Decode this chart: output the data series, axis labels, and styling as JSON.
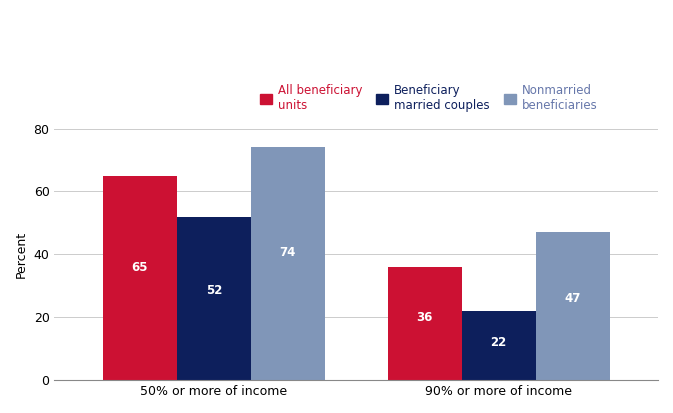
{
  "groups": [
    "50% or more of income",
    "90% or more of income"
  ],
  "series": [
    {
      "label": "All beneficiary\nunits",
      "values": [
        65,
        36
      ],
      "color": "#cc1133"
    },
    {
      "label": "Beneficiary\nmarried couples",
      "values": [
        52,
        22
      ],
      "color": "#0d1f5c"
    },
    {
      "label": "Nonmarried\nbeneficiaries",
      "values": [
        74,
        47
      ],
      "color": "#8096b8"
    }
  ],
  "legend_colors": [
    "#cc1133",
    "#0d1f5c",
    "#7a90aa"
  ],
  "ylabel": "Percent",
  "ylim": [
    0,
    80
  ],
  "yticks": [
    0,
    20,
    40,
    60,
    80
  ],
  "bar_width": 0.13,
  "group_centers": [
    0.28,
    0.78
  ],
  "xlim": [
    0.0,
    1.06
  ],
  "value_fontsize": 8.5,
  "legend_fontsize": 8.5,
  "axis_label_fontsize": 9
}
